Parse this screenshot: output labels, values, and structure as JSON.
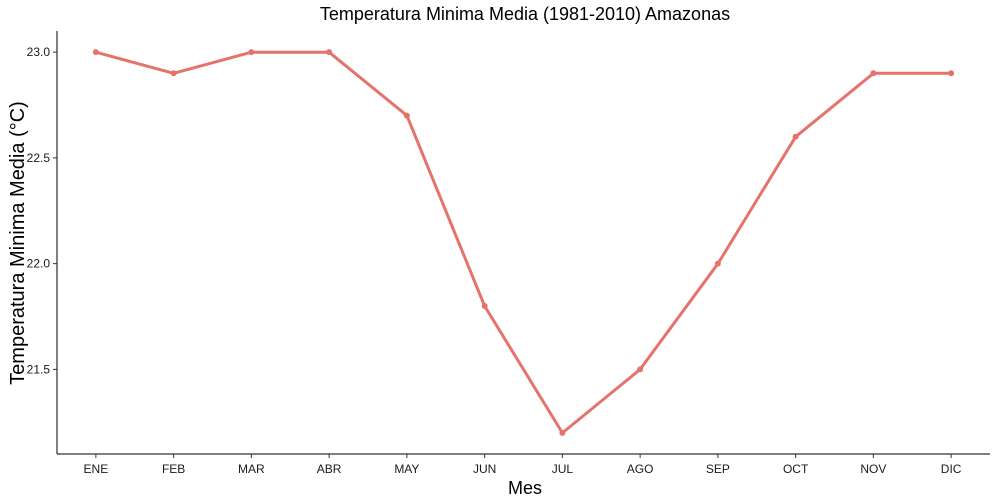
{
  "chart_data": {
    "type": "line",
    "title": "Temperatura Minima Media (1981-2010)  Amazonas",
    "xlabel": "Mes",
    "ylabel": "Temperatura Minima Media  (°C)",
    "categories": [
      "ENE",
      "FEB",
      "MAR",
      "ABR",
      "MAY",
      "JUN",
      "JUL",
      "AGO",
      "SEP",
      "OCT",
      "NOV",
      "DIC"
    ],
    "values": [
      23.0,
      22.9,
      23.0,
      23.0,
      22.7,
      21.8,
      21.2,
      21.5,
      22.0,
      22.6,
      22.9,
      22.9
    ],
    "yticks": [
      "21.5",
      "22.0",
      "22.5",
      "23.0"
    ],
    "ylim": [
      21.1,
      23.1
    ],
    "grid": false,
    "colors": {
      "line": "#E5736B"
    }
  }
}
